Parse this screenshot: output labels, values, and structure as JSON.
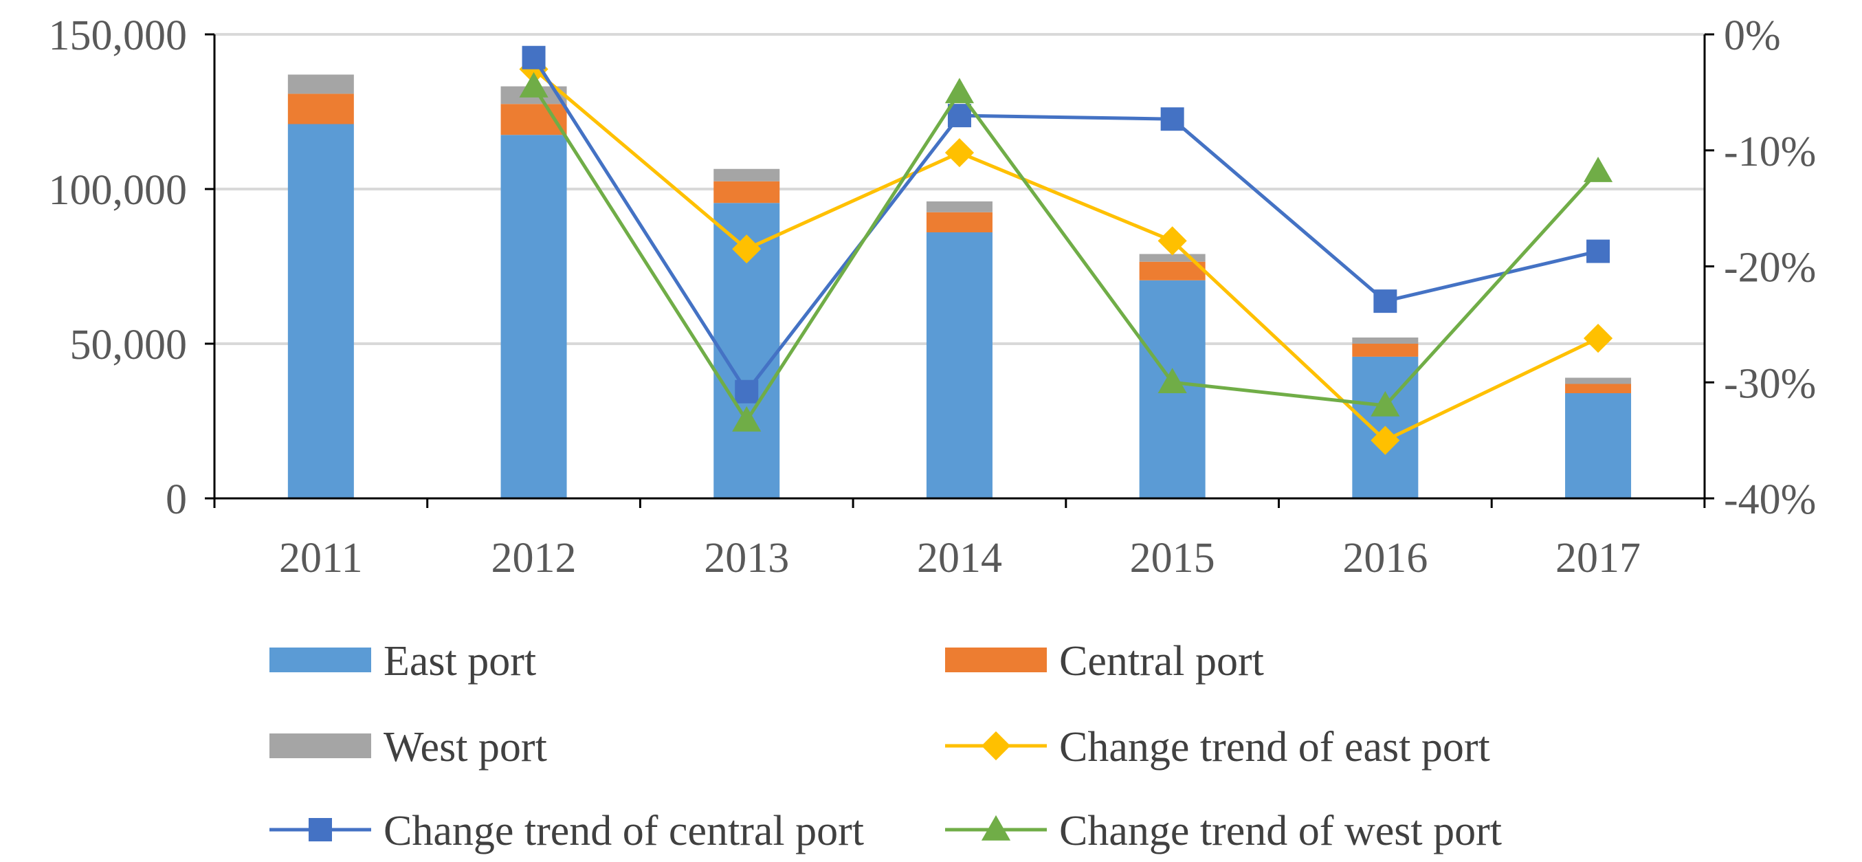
{
  "chart_data": {
    "type": "bar",
    "stacked": true,
    "categories": [
      "2011",
      "2012",
      "2013",
      "2014",
      "2015",
      "2016",
      "2017"
    ],
    "series": [
      {
        "name": "East port",
        "kind": "bar",
        "axis": "left",
        "color": "#5B9BD5",
        "values": [
          121000,
          117500,
          95500,
          86000,
          70500,
          45800,
          34000
        ]
      },
      {
        "name": "Central port",
        "kind": "bar",
        "axis": "left",
        "color": "#ED7D31",
        "values": [
          9800,
          10000,
          7000,
          6500,
          6000,
          4200,
          3000
        ]
      },
      {
        "name": "West port",
        "kind": "bar",
        "axis": "left",
        "color": "#A5A5A5",
        "values": [
          6200,
          5700,
          4000,
          3500,
          2500,
          2000,
          2000
        ]
      },
      {
        "name": "Change trend of east port",
        "kind": "line",
        "axis": "right",
        "color": "#FFC000",
        "marker": "diamond",
        "values": [
          null,
          -3.0,
          -18.5,
          -10.2,
          -17.8,
          -35.0,
          -26.2
        ]
      },
      {
        "name": "Change trend of central port",
        "kind": "line",
        "axis": "right",
        "color": "#4472C4",
        "marker": "square",
        "values": [
          null,
          -2.0,
          -30.8,
          -7.0,
          -7.3,
          -23.0,
          -18.7
        ]
      },
      {
        "name": "Change trend of west port",
        "kind": "line",
        "axis": "right",
        "color": "#70AD47",
        "marker": "triangle",
        "values": [
          null,
          -4.5,
          -33.3,
          -5.0,
          -30.0,
          -32.0,
          -11.8
        ]
      }
    ],
    "y_left": {
      "min": 0,
      "max": 150000,
      "ticks": [
        0,
        50000,
        100000,
        150000
      ],
      "tick_labels": [
        "0",
        "50,000",
        "100,000",
        "150,000"
      ]
    },
    "y_right": {
      "min": -40,
      "max": 0,
      "ticks": [
        -40,
        -30,
        -20,
        -10,
        0
      ],
      "tick_labels": [
        "-40%",
        "-30%",
        "-20%",
        "-10%",
        "0%"
      ]
    },
    "grid": true,
    "legend_position": "bottom",
    "title": "",
    "xlabel": "",
    "ylabel": ""
  }
}
